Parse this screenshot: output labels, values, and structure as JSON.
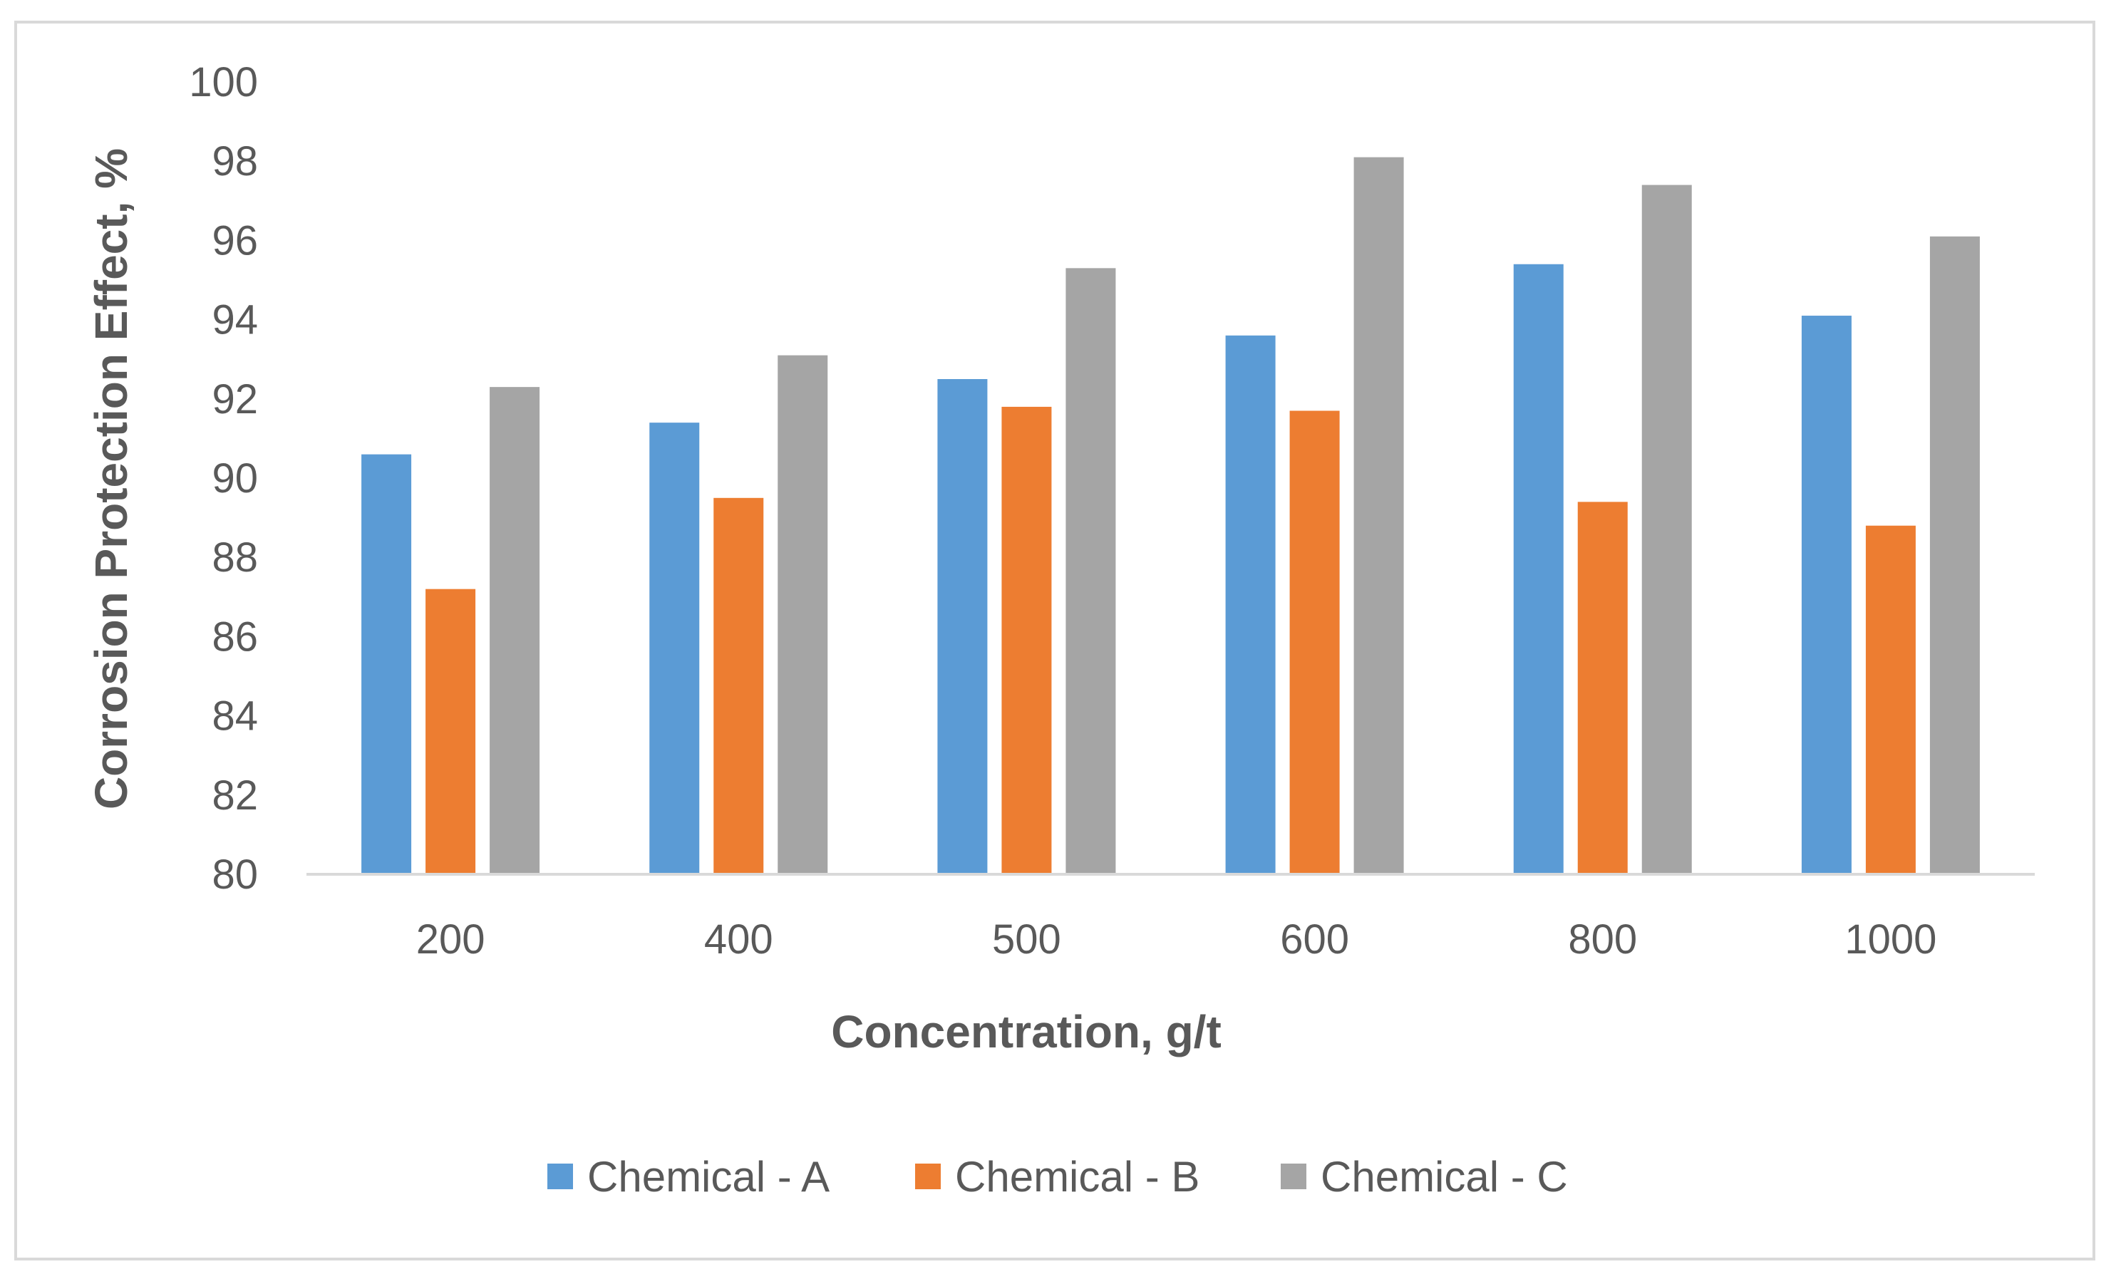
{
  "chart_data": {
    "type": "bar",
    "title": "",
    "xlabel": "Concentration, g/t",
    "ylabel": "Corrosion Protection Effect, %",
    "categories": [
      "200",
      "400",
      "500",
      "600",
      "800",
      "1000"
    ],
    "series": [
      {
        "name": "Chemical - A",
        "color": "#5b9bd5",
        "values": [
          90.6,
          91.4,
          92.5,
          93.6,
          95.4,
          94.1
        ]
      },
      {
        "name": "Chemical - B",
        "color": "#ed7d31",
        "values": [
          87.2,
          89.5,
          91.8,
          91.7,
          89.4,
          88.8
        ]
      },
      {
        "name": "Chemical - C",
        "color": "#a5a5a5",
        "values": [
          92.3,
          93.1,
          95.3,
          98.1,
          97.4,
          96.1
        ]
      }
    ],
    "ylim": [
      80,
      100
    ],
    "yticks": [
      "80",
      "82",
      "84",
      "86",
      "88",
      "90",
      "92",
      "94",
      "96",
      "98",
      "100"
    ],
    "grid": false,
    "legend": "bottom"
  }
}
